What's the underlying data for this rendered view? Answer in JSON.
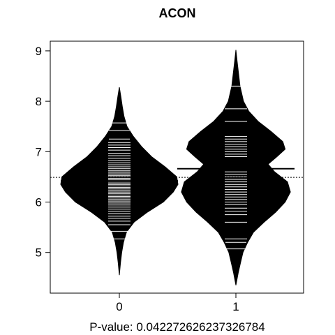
{
  "chart_data": {
    "type": "beanplot",
    "title": "ACON",
    "xlabel": "P-value: 0.0422726262373267​84",
    "ylabel": "",
    "categories": [
      "0",
      "1"
    ],
    "ylim": [
      4.2,
      9.2
    ],
    "yticks": [
      5,
      6,
      7,
      8,
      9
    ],
    "overall_mean": 6.49,
    "grid": false,
    "beans": [
      {
        "category": "0",
        "mean": 6.42,
        "range": [
          4.55,
          8.28
        ],
        "density": [
          [
            4.55,
            0.0
          ],
          [
            4.8,
            0.02
          ],
          [
            5.0,
            0.04
          ],
          [
            5.2,
            0.07
          ],
          [
            5.4,
            0.12
          ],
          [
            5.6,
            0.25
          ],
          [
            5.8,
            0.48
          ],
          [
            6.0,
            0.75
          ],
          [
            6.2,
            0.92
          ],
          [
            6.35,
            1.0
          ],
          [
            6.5,
            0.98
          ],
          [
            6.7,
            0.78
          ],
          [
            6.9,
            0.55
          ],
          [
            7.1,
            0.38
          ],
          [
            7.3,
            0.24
          ],
          [
            7.5,
            0.13
          ],
          [
            7.7,
            0.08
          ],
          [
            7.9,
            0.05
          ],
          [
            8.1,
            0.025
          ],
          [
            8.28,
            0.0
          ]
        ],
        "observations": [
          5.27,
          5.42,
          5.55,
          5.62,
          5.68,
          5.72,
          5.77,
          5.82,
          5.86,
          5.9,
          5.94,
          5.98,
          6.02,
          6.05,
          6.08,
          6.11,
          6.14,
          6.17,
          6.2,
          6.23,
          6.26,
          6.29,
          6.32,
          6.35,
          6.38,
          6.41,
          6.44,
          6.47,
          6.5,
          6.53,
          6.56,
          6.59,
          6.62,
          6.66,
          6.7,
          6.74,
          6.78,
          6.82,
          6.87,
          6.92,
          6.97,
          7.03,
          7.08,
          7.13,
          7.18,
          7.25,
          7.42,
          7.57
        ]
      },
      {
        "category": "1",
        "mean": 6.66,
        "range": [
          4.35,
          9.02
        ],
        "density": [
          [
            4.35,
            0.0
          ],
          [
            4.6,
            0.04
          ],
          [
            4.8,
            0.08
          ],
          [
            5.0,
            0.12
          ],
          [
            5.2,
            0.2
          ],
          [
            5.4,
            0.3
          ],
          [
            5.6,
            0.48
          ],
          [
            5.8,
            0.68
          ],
          [
            6.0,
            0.84
          ],
          [
            6.2,
            0.93
          ],
          [
            6.4,
            0.88
          ],
          [
            6.6,
            0.66
          ],
          [
            6.75,
            0.55
          ],
          [
            6.9,
            0.7
          ],
          [
            7.05,
            0.84
          ],
          [
            7.2,
            0.8
          ],
          [
            7.4,
            0.6
          ],
          [
            7.6,
            0.38
          ],
          [
            7.8,
            0.22
          ],
          [
            8.0,
            0.13
          ],
          [
            8.3,
            0.07
          ],
          [
            8.6,
            0.04
          ],
          [
            8.8,
            0.02
          ],
          [
            9.02,
            0.0
          ]
        ],
        "observations": [
          5.07,
          5.2,
          5.27,
          5.6,
          5.75,
          5.82,
          5.88,
          5.95,
          6.0,
          6.05,
          6.1,
          6.15,
          6.2,
          6.25,
          6.3,
          6.35,
          6.4,
          6.45,
          6.5,
          6.55,
          6.6,
          6.9,
          6.95,
          7.0,
          7.05,
          7.1,
          7.15,
          7.2,
          7.25,
          7.3,
          7.6,
          7.85,
          8.3
        ]
      }
    ]
  }
}
